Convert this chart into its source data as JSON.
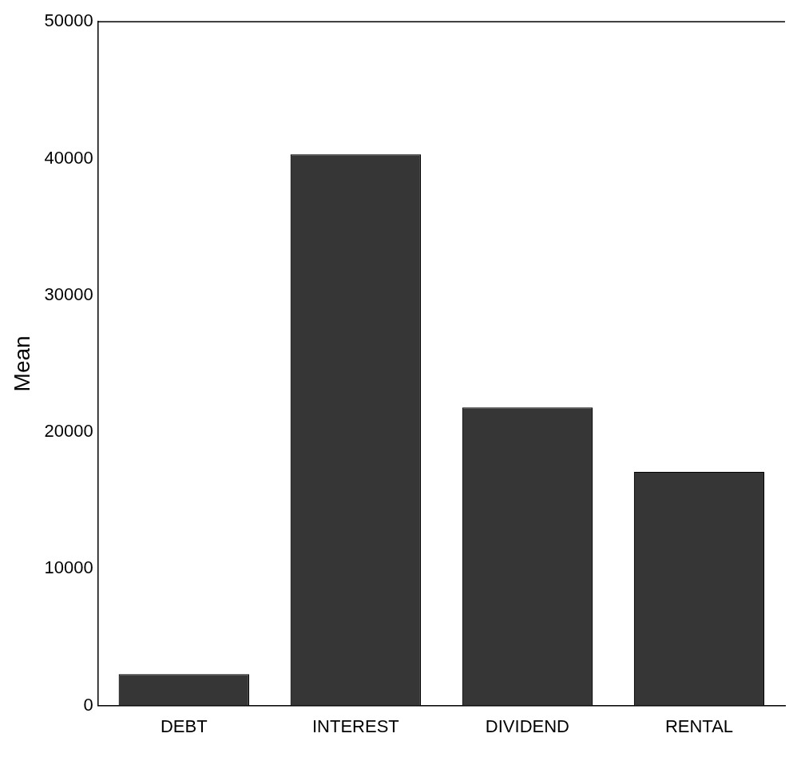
{
  "chart_data": {
    "type": "bar",
    "ylabel": "Mean",
    "categories": [
      "DEBT",
      "INTEREST",
      "DIVIDEND",
      "RENTAL"
    ],
    "values": [
      2300,
      40300,
      21800,
      17100
    ],
    "color": "#363636",
    "ylim": [
      0,
      50000
    ],
    "yticks": [
      0,
      10000,
      20000,
      30000,
      40000,
      50000
    ],
    "grid": false,
    "legend": false
  }
}
